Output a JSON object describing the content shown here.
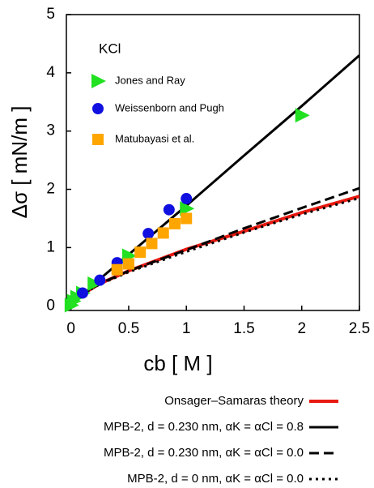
{
  "chart_data": {
    "type": "line",
    "xlabel": "cb [ M ]",
    "ylabel": "Δσ [ mN/m ]",
    "legend_title": "KCl",
    "xlim": [
      -0.04,
      2.5
    ],
    "ylim": [
      -0.08,
      5
    ],
    "xticks": [
      0,
      0.5,
      1,
      1.5,
      2,
      2.5
    ],
    "yticks": [
      0,
      1,
      2,
      3,
      4,
      5
    ],
    "series": [
      {
        "name": "Jones and Ray",
        "color": "#22e022",
        "marker": "triangle",
        "x": [
          0.001,
          0.02,
          0.05,
          0.1,
          0.2,
          0.5,
          1.0,
          2.0
        ],
        "values": [
          0.01,
          0.08,
          0.15,
          0.22,
          0.38,
          0.86,
          1.67,
          3.27
        ]
      },
      {
        "name": "Weissenborn and Pugh",
        "color": "#1010e0",
        "marker": "circle",
        "x": [
          0.1,
          0.25,
          0.4,
          0.67,
          0.85,
          1.0
        ],
        "values": [
          0.22,
          0.44,
          0.74,
          1.24,
          1.65,
          1.84
        ]
      },
      {
        "name": "Matubayasi et al.",
        "color": "#ffa500",
        "marker": "square",
        "x": [
          0.4,
          0.5,
          0.6,
          0.7,
          0.8,
          0.9,
          1.0
        ],
        "values": [
          0.62,
          0.72,
          0.92,
          1.07,
          1.25,
          1.41,
          1.5
        ]
      },
      {
        "name": "Onsager–Samaras theory",
        "color": "#e8190f",
        "dash": "solid",
        "width": 4,
        "x": [
          0,
          0.1,
          0.25,
          0.5,
          1,
          1.5,
          2,
          2.5
        ],
        "values": [
          0,
          0.2,
          0.38,
          0.6,
          0.97,
          1.28,
          1.6,
          1.88
        ]
      },
      {
        "name": "MPB-2, d = 0.230 nm, αK = αCl = 0.8",
        "color": "#000000",
        "dash": "solid",
        "width": 3,
        "x": [
          0,
          0.1,
          0.25,
          0.5,
          1,
          1.5,
          2,
          2.5
        ],
        "values": [
          0,
          0.18,
          0.46,
          0.88,
          1.72,
          2.58,
          3.43,
          4.3
        ]
      },
      {
        "name": "MPB-2, d = 0.230 nm, αK = αCl = 0.0",
        "color": "#000000",
        "dash": "dashed",
        "width": 3,
        "x": [
          0,
          0.1,
          0.25,
          0.5,
          1,
          1.5,
          2,
          2.5
        ],
        "values": [
          0,
          0.2,
          0.38,
          0.6,
          0.96,
          1.33,
          1.68,
          2.02
        ]
      },
      {
        "name": "MPB-2, d = 0 nm, αK = αCl = 0.0",
        "color": "#000000",
        "dash": "dotted",
        "width": 3,
        "x": [
          0,
          0.1,
          0.25,
          0.5,
          1,
          1.5,
          2,
          2.5
        ],
        "values": [
          0,
          0.2,
          0.37,
          0.58,
          0.93,
          1.26,
          1.57,
          1.85
        ]
      }
    ]
  }
}
